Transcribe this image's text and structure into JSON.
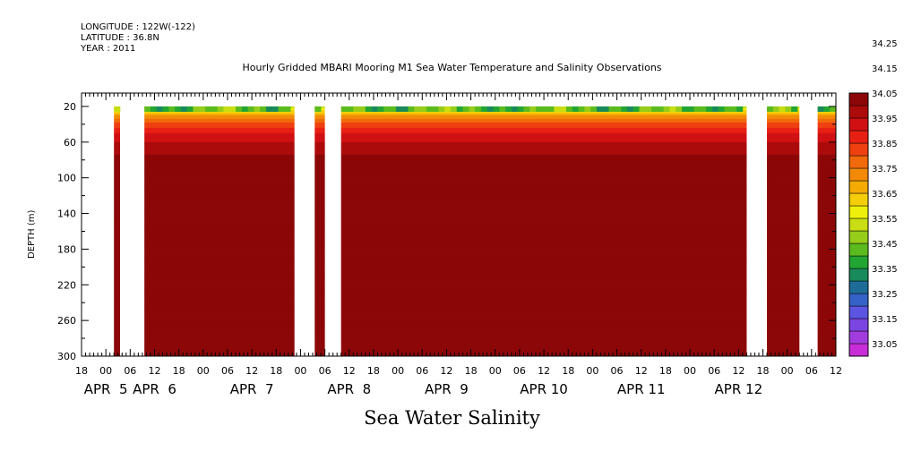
{
  "header": {
    "longitude": "LONGITUDE : 122W(-122)",
    "latitude": "LATITUDE : 36.8N",
    "year": "YEAR : 2011"
  },
  "title": "Hourly Gridded MBARI Mooring M1 Sea Water Temperature and Salinity Observations",
  "footer": "Sea Water Salinity",
  "chart_data": {
    "type": "heatmap",
    "title": "Hourly Gridded MBARI Mooring M1 Sea Water Temperature and Salinity Observations",
    "xlabel": "",
    "ylabel": "DEPTH (m)",
    "x_units": "hours since APR 4 18:00 2011",
    "xlim": [
      0,
      186
    ],
    "ylim": [
      300,
      5
    ],
    "y_ticks": [
      20,
      60,
      100,
      140,
      180,
      220,
      260,
      300
    ],
    "x_hour_ticks": [
      {
        "x": 0,
        "label": "18"
      },
      {
        "x": 6,
        "label": "00"
      },
      {
        "x": 12,
        "label": "06"
      },
      {
        "x": 18,
        "label": "12"
      },
      {
        "x": 24,
        "label": "18"
      },
      {
        "x": 30,
        "label": "00"
      },
      {
        "x": 36,
        "label": "06"
      },
      {
        "x": 42,
        "label": "12"
      },
      {
        "x": 48,
        "label": "18"
      },
      {
        "x": 54,
        "label": "00"
      },
      {
        "x": 60,
        "label": "06"
      },
      {
        "x": 66,
        "label": "12"
      },
      {
        "x": 72,
        "label": "18"
      },
      {
        "x": 78,
        "label": "00"
      },
      {
        "x": 84,
        "label": "06"
      },
      {
        "x": 90,
        "label": "12"
      },
      {
        "x": 96,
        "label": "18"
      },
      {
        "x": 102,
        "label": "00"
      },
      {
        "x": 108,
        "label": "06"
      },
      {
        "x": 114,
        "label": "12"
      },
      {
        "x": 120,
        "label": "18"
      },
      {
        "x": 126,
        "label": "00"
      },
      {
        "x": 132,
        "label": "06"
      },
      {
        "x": 138,
        "label": "12"
      },
      {
        "x": 144,
        "label": "18"
      },
      {
        "x": 150,
        "label": "00"
      },
      {
        "x": 156,
        "label": "06"
      },
      {
        "x": 162,
        "label": "12"
      },
      {
        "x": 168,
        "label": "18"
      },
      {
        "x": 174,
        "label": "00"
      },
      {
        "x": 180,
        "label": "06"
      },
      {
        "x": 186,
        "label": "12"
      }
    ],
    "x_day_labels": [
      {
        "x": 6,
        "label": "APR  5"
      },
      {
        "x": 18,
        "label": "APR  6"
      },
      {
        "x": 42,
        "label": "APR  7"
      },
      {
        "x": 66,
        "label": "APR  8"
      },
      {
        "x": 90,
        "label": "APR  9"
      },
      {
        "x": 114,
        "label": "APR 10"
      },
      {
        "x": 138,
        "label": "APR 11"
      },
      {
        "x": 162,
        "label": "APR 12"
      }
    ],
    "data_segments": [
      [
        8,
        9.5
      ],
      [
        15.5,
        52.5
      ],
      [
        57.5,
        60
      ],
      [
        64,
        164
      ],
      [
        169,
        177
      ],
      [
        181.5,
        186
      ]
    ],
    "depth_profile": [
      {
        "depth": 20,
        "salinity": 33.5
      },
      {
        "depth": 30,
        "salinity": 33.7
      },
      {
        "depth": 40,
        "salinity": 33.82
      },
      {
        "depth": 50,
        "salinity": 33.9
      },
      {
        "depth": 60,
        "salinity": 33.95
      },
      {
        "depth": 75,
        "salinity": 34.0
      },
      {
        "depth": 90,
        "salinity": 34.02
      },
      {
        "depth": 110,
        "salinity": 34.05
      },
      {
        "depth": 130,
        "salinity": 34.1
      },
      {
        "depth": 160,
        "salinity": 34.12
      },
      {
        "depth": 200,
        "salinity": 34.16
      },
      {
        "depth": 225,
        "salinity": 34.2
      },
      {
        "depth": 245,
        "salinity": 34.25
      },
      {
        "depth": 255,
        "salinity": 34.3
      },
      {
        "depth": 265,
        "salinity": 34.25
      },
      {
        "depth": 280,
        "salinity": 34.2
      },
      {
        "depth": 300,
        "salinity": 34.15
      }
    ],
    "colorbar": {
      "levels": [
        33.05,
        33.15,
        33.25,
        33.35,
        33.45,
        33.55,
        33.65,
        33.75,
        33.85,
        33.95,
        34.05,
        34.15,
        34.25
      ],
      "labels": [
        "33.05",
        "33.15",
        "33.25",
        "33.35",
        "33.45",
        "33.55",
        "33.65",
        "33.75",
        "33.85",
        "33.95",
        "34.05",
        "34.15",
        "34.25"
      ],
      "colors": [
        "#c72ed8",
        "#a23cde",
        "#7b45e1",
        "#5b55e2",
        "#3462c6",
        "#1e6d99",
        "#198a5a",
        "#22a532",
        "#5bbb1e",
        "#96cc1a",
        "#c8dd12",
        "#eef00c",
        "#f4cf09",
        "#f4ab05",
        "#f28a08",
        "#f06a0b",
        "#ee4010",
        "#e82014",
        "#d01012",
        "#ac0b0b",
        "#8c0707"
      ],
      "color_start": 33.0,
      "color_step": 0.05
    }
  }
}
